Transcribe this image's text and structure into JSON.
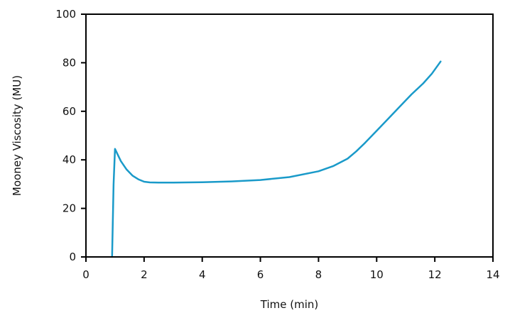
{
  "chart_data": {
    "type": "line",
    "title": "",
    "xlabel": "Time (min)",
    "ylabel": "Mooney Viscosity (MU)",
    "xlim": [
      0,
      14
    ],
    "ylim": [
      0,
      100
    ],
    "xticks": [
      0,
      2,
      4,
      6,
      8,
      10,
      12,
      14
    ],
    "yticks": [
      0,
      20,
      40,
      60,
      80,
      100
    ],
    "grid": false,
    "legend": "none",
    "colors": {
      "line": "#1a9ac9",
      "axis": "#000000"
    },
    "series": [
      {
        "x": [
          0.9,
          0.95,
          1.0,
          1.2,
          1.4,
          1.6,
          1.8,
          2.0,
          2.2,
          2.5,
          3.0,
          4.0,
          5.0,
          6.0,
          7.0,
          8.0,
          8.5,
          9.0,
          9.3,
          9.6,
          10.0,
          10.4,
          10.8,
          11.2,
          11.6,
          11.9,
          12.2
        ],
        "y": [
          0,
          30,
          44.5,
          39.5,
          36,
          33.5,
          32,
          31,
          30.7,
          30.6,
          30.6,
          30.8,
          31.1,
          31.7,
          32.9,
          35.3,
          37.4,
          40.5,
          43.5,
          47,
          52,
          57,
          62,
          67,
          71.5,
          75.5,
          80.5
        ]
      }
    ]
  }
}
